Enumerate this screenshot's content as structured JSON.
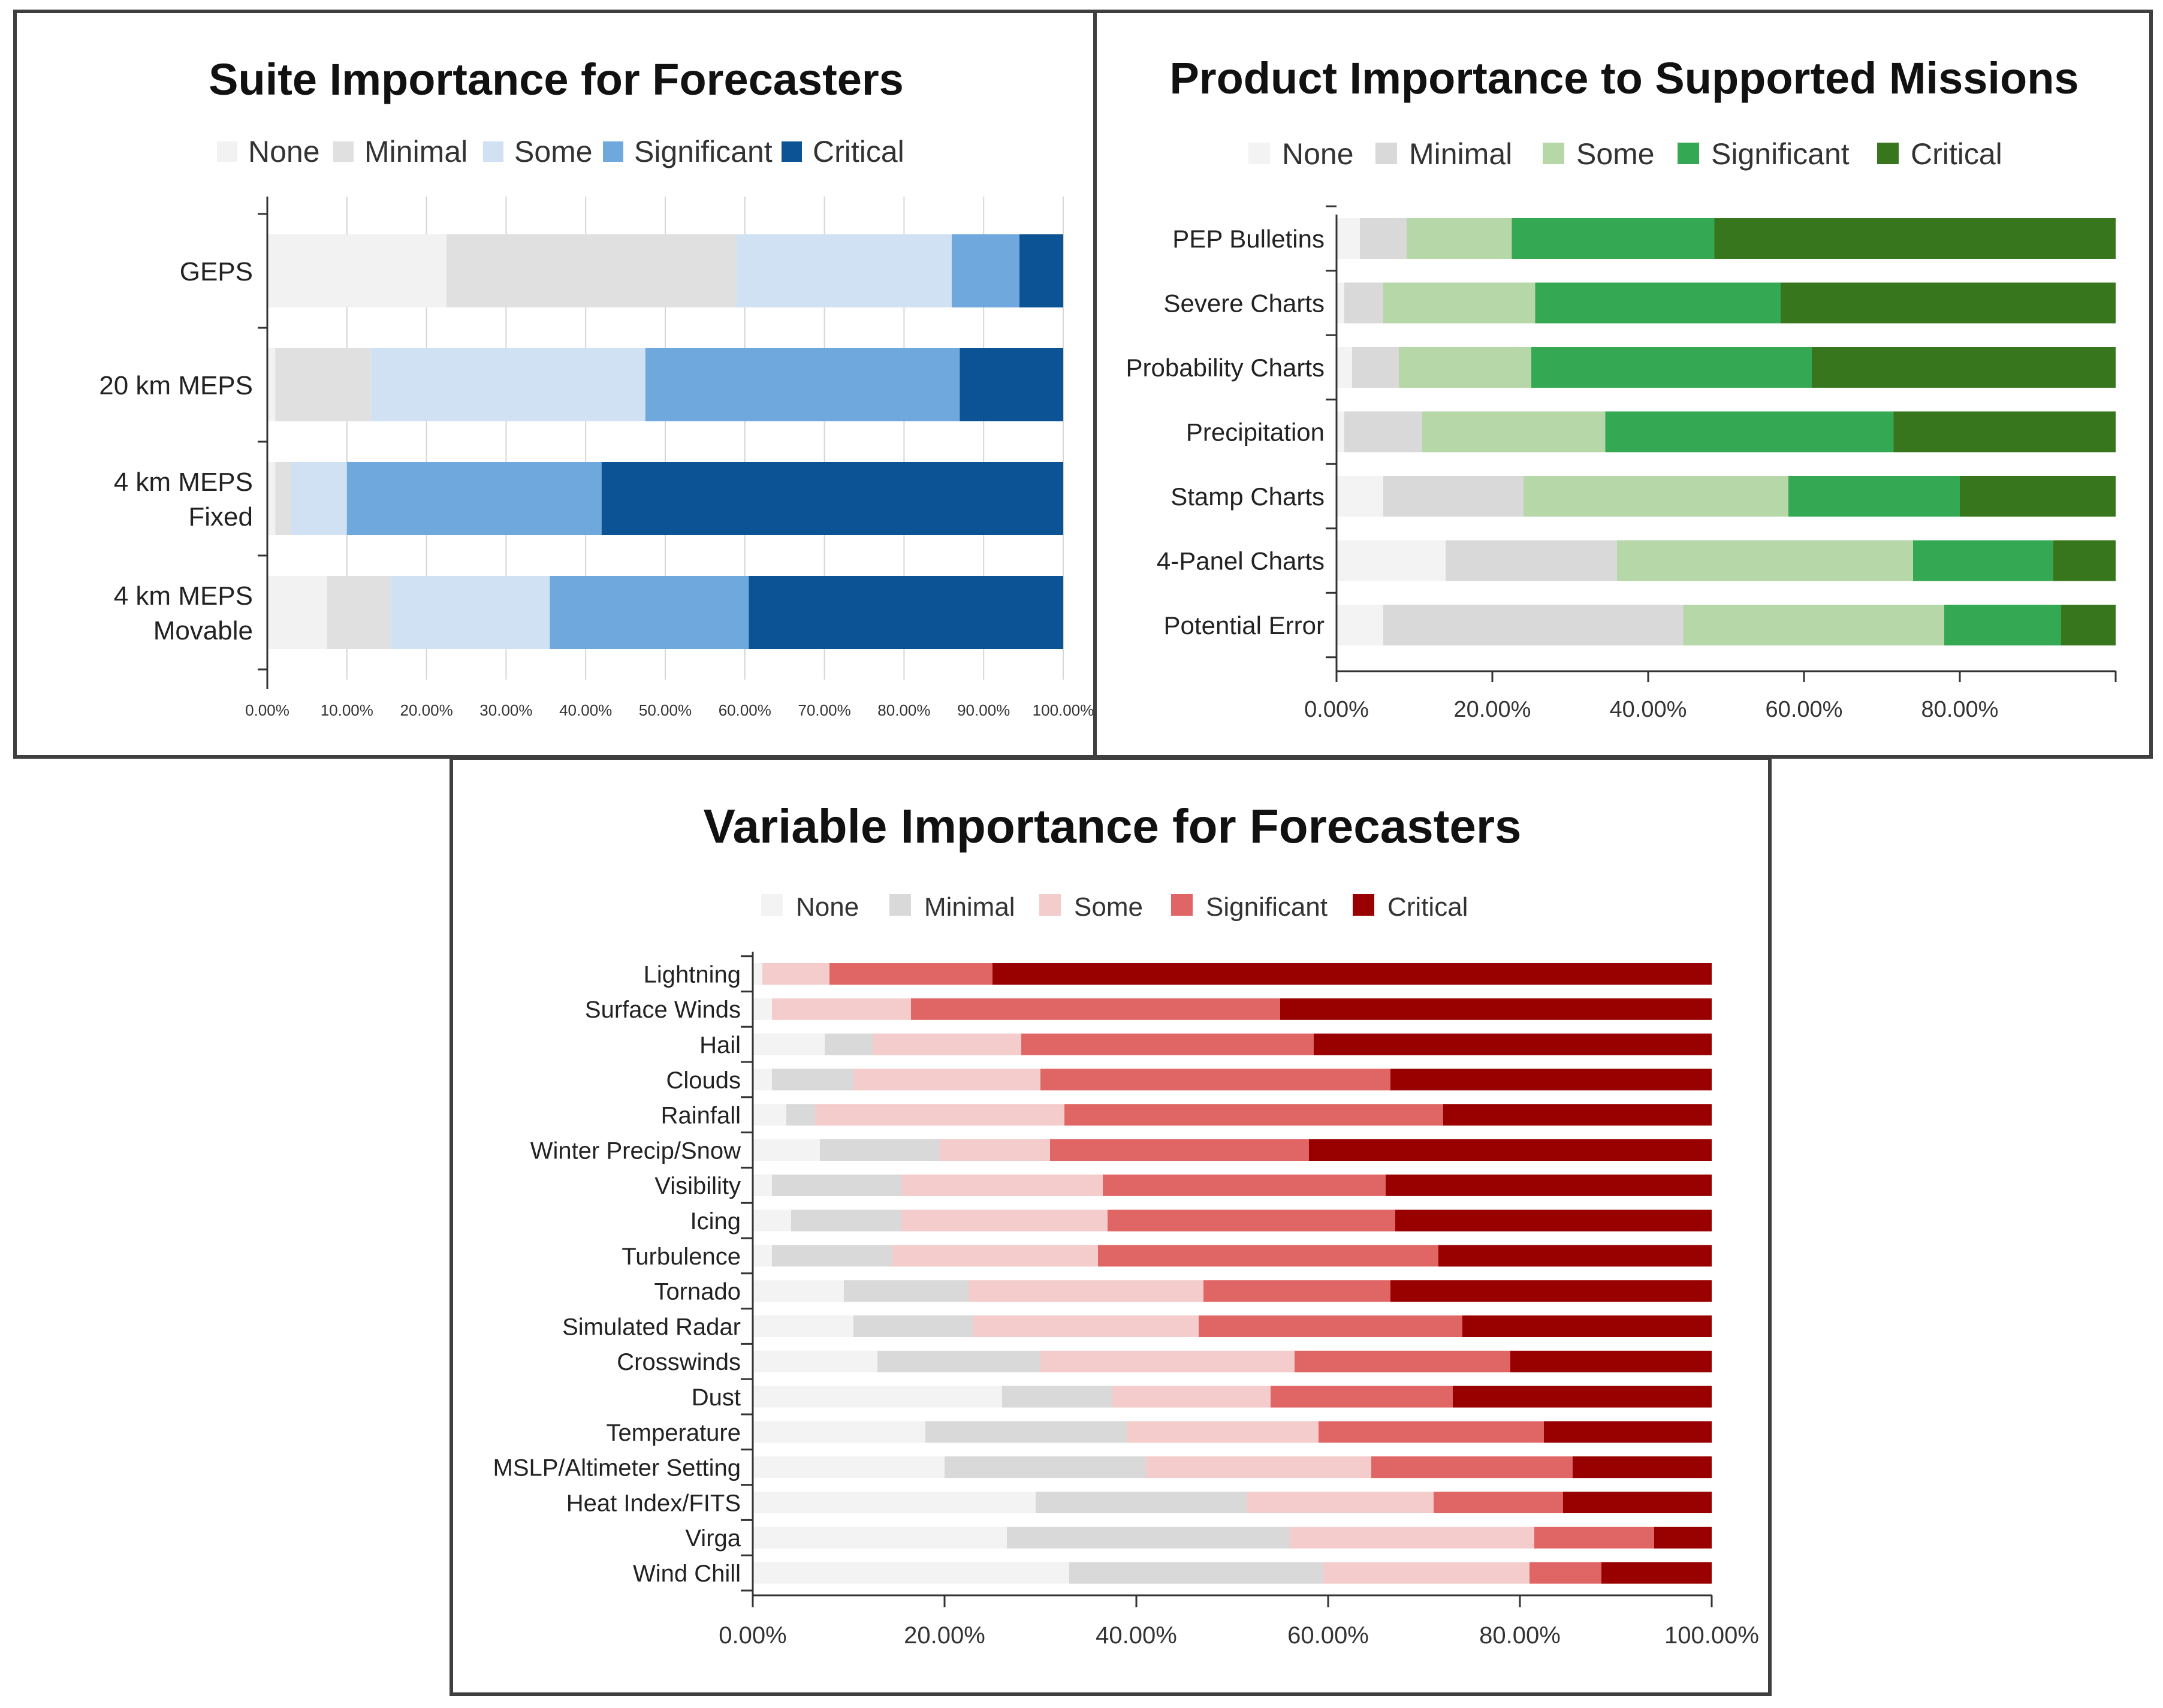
{
  "chart_data": [
    {
      "type": "bar",
      "orientation": "horizontal",
      "stacked": true,
      "title": "Suite Importance for Forecasters",
      "legend": [
        "None",
        "Minimal",
        "Some",
        "Significant",
        "Critical"
      ],
      "colors": [
        "#f2f2f2",
        "#e0e0e0",
        "#cfe1f3",
        "#6fa8dc",
        "#0b5394"
      ],
      "categories": [
        [
          "GEPS"
        ],
        [
          "20 km MEPS"
        ],
        [
          "4 km MEPS",
          "Fixed"
        ],
        [
          "4 km MEPS",
          "Movable"
        ]
      ],
      "series": [
        {
          "name": "None",
          "values": [
            22.5,
            1,
            1,
            7.5
          ]
        },
        {
          "name": "Minimal",
          "values": [
            36.5,
            12,
            2,
            8
          ]
        },
        {
          "name": "Some",
          "values": [
            27,
            34.5,
            7,
            20
          ]
        },
        {
          "name": "Significant",
          "values": [
            8.5,
            39.5,
            32,
            25
          ]
        },
        {
          "name": "Critical",
          "values": [
            5.5,
            13,
            58,
            39.5
          ]
        }
      ],
      "xlim": [
        0,
        100
      ],
      "ticks": [
        "0.00%",
        "10.00%",
        "20.00%",
        "30.00%",
        "40.00%",
        "50.00%",
        "60.00%",
        "70.00%",
        "80.00%",
        "90.00%",
        "100.00%"
      ],
      "grid": true,
      "legend_position": "top"
    },
    {
      "type": "bar",
      "orientation": "horizontal",
      "stacked": true,
      "title": "Product Importance to Supported Missions",
      "legend": [
        "None",
        "Minimal",
        "Some",
        "Significant",
        "Critical"
      ],
      "colors": [
        "#f3f3f3",
        "#d9d9d9",
        "#b6d7a8",
        "#34a853",
        "#38761d"
      ],
      "categories": [
        [
          "PEP Bulletins"
        ],
        [
          "Severe Charts"
        ],
        [
          "Probability Charts"
        ],
        [
          "Precipitation"
        ],
        [
          "Stamp Charts"
        ],
        [
          "4-Panel Charts"
        ],
        [
          "Potential Error"
        ]
      ],
      "series": [
        {
          "name": "None",
          "values": [
            3,
            1,
            2,
            1,
            6,
            14,
            6
          ]
        },
        {
          "name": "Minimal",
          "values": [
            6,
            5,
            6,
            10,
            18,
            22,
            38.5
          ]
        },
        {
          "name": "Some",
          "values": [
            13.5,
            19.5,
            17,
            23.5,
            34,
            38,
            33.5
          ]
        },
        {
          "name": "Significant",
          "values": [
            26,
            31.5,
            36,
            37,
            22,
            18,
            15
          ]
        },
        {
          "name": "Critical",
          "values": [
            51.5,
            43,
            39,
            28.5,
            20,
            8,
            7
          ]
        }
      ],
      "xlim": [
        0,
        100
      ],
      "ticks": [
        "0.00%",
        "20.00%",
        "40.00%",
        "60.00%",
        "80.00%"
      ],
      "grid": false,
      "legend_position": "top"
    },
    {
      "type": "bar",
      "orientation": "horizontal",
      "stacked": true,
      "title": "Variable Importance for Forecasters",
      "legend": [
        "None",
        "Minimal",
        "Some",
        "Significant",
        "Critical"
      ],
      "colors": [
        "#f3f3f3",
        "#d9d9d9",
        "#f4cccc",
        "#e06666",
        "#990000"
      ],
      "categories": [
        [
          "Lightning"
        ],
        [
          "Surface Winds"
        ],
        [
          "Hail"
        ],
        [
          "Clouds"
        ],
        [
          "Rainfall"
        ],
        [
          "Winter Precip/Snow"
        ],
        [
          "Visibility"
        ],
        [
          "Icing"
        ],
        [
          "Turbulence"
        ],
        [
          "Tornado"
        ],
        [
          "Simulated Radar"
        ],
        [
          "Crosswinds"
        ],
        [
          "Dust"
        ],
        [
          "Temperature"
        ],
        [
          "MSLP/Altimeter Setting"
        ],
        [
          "Heat Index/FITS"
        ],
        [
          "Virga"
        ],
        [
          "Wind Chill"
        ]
      ],
      "series": [
        {
          "name": "None",
          "values": [
            1,
            2,
            7.5,
            2,
            3.5,
            7,
            2,
            4,
            2,
            9.5,
            10.5,
            13,
            26,
            18,
            20,
            29.5,
            26.5,
            33
          ]
        },
        {
          "name": "Minimal",
          "values": [
            0,
            0,
            5,
            8.5,
            3,
            12.5,
            13.5,
            11.5,
            12.5,
            13,
            12.5,
            17,
            11.5,
            21,
            21,
            22,
            29.5,
            26.5
          ]
        },
        {
          "name": "Some",
          "values": [
            7,
            14.5,
            15.5,
            19.5,
            26,
            11.5,
            21,
            21.5,
            21.5,
            24.5,
            23.5,
            26.5,
            16.5,
            20,
            23.5,
            19.5,
            25.5,
            21.5
          ]
        },
        {
          "name": "Significant",
          "values": [
            17,
            38.5,
            30.5,
            36.5,
            39.5,
            27,
            29.5,
            30,
            35.5,
            19.5,
            27.5,
            22.5,
            19,
            23.5,
            21,
            13.5,
            12.5,
            7.5
          ]
        },
        {
          "name": "Critical",
          "values": [
            75,
            45,
            41.5,
            33.5,
            28,
            42,
            34,
            33,
            28.5,
            33.5,
            26,
            21,
            27,
            17.5,
            14.5,
            15.5,
            6,
            11.5
          ]
        }
      ],
      "xlim": [
        0,
        100
      ],
      "ticks": [
        "0.00%",
        "20.00%",
        "40.00%",
        "60.00%",
        "80.00%",
        "100.00%"
      ],
      "grid": false,
      "legend_position": "top"
    }
  ]
}
